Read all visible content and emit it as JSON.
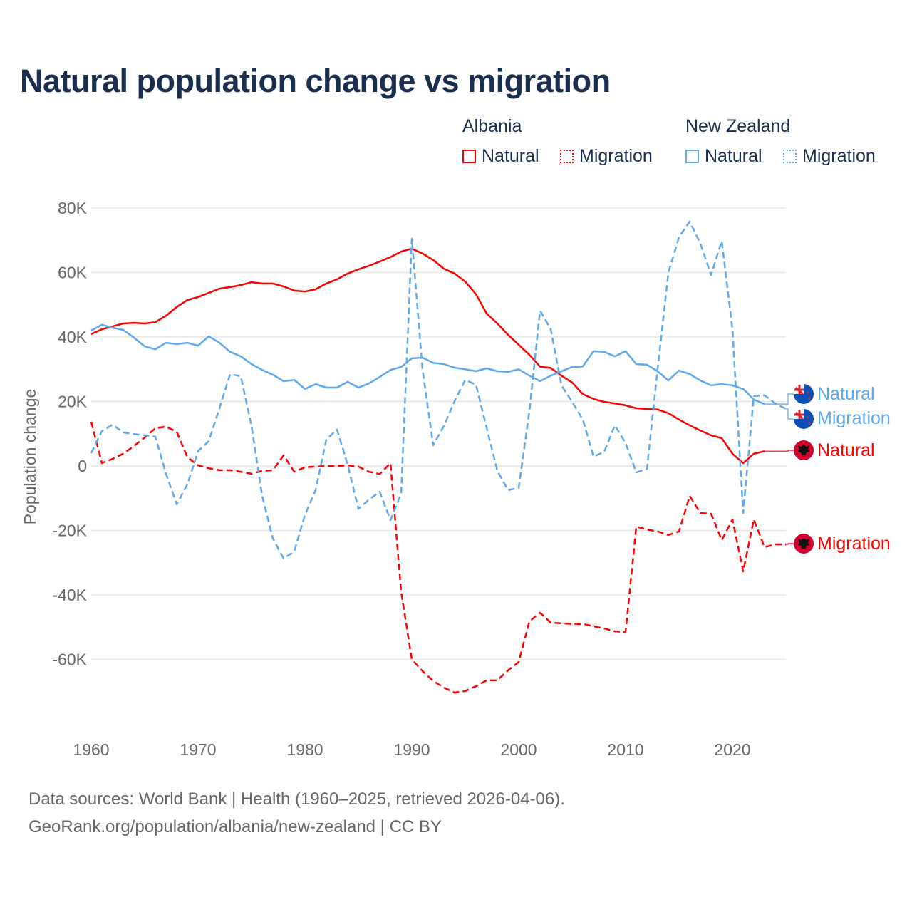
{
  "title": "Natural population change vs migration",
  "legend": {
    "groups": [
      {
        "name": "Albania",
        "items": [
          "Natural",
          "Migration"
        ]
      },
      {
        "name": "New Zealand",
        "items": [
          "Natural",
          "Migration"
        ]
      }
    ]
  },
  "colors": {
    "albania": "#ff0000",
    "new_zealand": "#5ea8ec",
    "title": "#1a2e4f",
    "axis_text": "#666666",
    "grid": "#e6e6e6"
  },
  "footer": {
    "line1": "Data sources: World Bank | Health (1960–2025, retrieved 2026-04-06).",
    "line2": "GeoRank.org/population/albania/new-zealand | CC BY"
  },
  "chart_data": {
    "type": "line",
    "title": "Natural population change vs migration",
    "xlabel": "",
    "ylabel": "Population change",
    "xlim": [
      1960,
      2025
    ],
    "ylim": [
      -80000,
      80000
    ],
    "x_ticks": [
      1960,
      1970,
      1980,
      1990,
      2000,
      2010,
      2020
    ],
    "x_tick_labels": [
      "1960",
      "1970",
      "1980",
      "1990",
      "2000",
      "2010",
      "2020"
    ],
    "y_ticks": [
      80000,
      60000,
      40000,
      20000,
      0,
      -20000,
      -40000,
      -60000
    ],
    "y_tick_labels": [
      "80K",
      "60K",
      "40K",
      "20K",
      "0",
      "-20K",
      "-40K",
      "-60K"
    ],
    "grid": true,
    "legend_position": "top-right",
    "series": [
      {
        "name": "Albania Natural",
        "country": "Albania",
        "kind": "Natural",
        "dash": "solid",
        "color": "#ff0000",
        "start_year": 1960,
        "values": [
          40900,
          42400,
          43300,
          44200,
          44400,
          44200,
          44600,
          46600,
          49300,
          51500,
          52400,
          53700,
          55000,
          55500,
          56100,
          57000,
          56600,
          56600,
          55700,
          54400,
          54100,
          54800,
          56600,
          57900,
          59700,
          61000,
          62100,
          63400,
          64800,
          66500,
          67400,
          65900,
          63900,
          61200,
          59700,
          57200,
          53300,
          47300,
          44200,
          40700,
          37600,
          34500,
          30800,
          30400,
          28000,
          25900,
          22300,
          20800,
          19900,
          19400,
          18800,
          17900,
          17700,
          17500,
          16400,
          14400,
          12600,
          11000,
          9500,
          8600,
          3800,
          900,
          3800,
          4600
        ]
      },
      {
        "name": "Albania Migration",
        "country": "Albania",
        "kind": "Migration",
        "dash": "dashed",
        "color": "#ff0000",
        "start_year": 1960,
        "values": [
          13700,
          900,
          2200,
          3800,
          6200,
          8800,
          11700,
          12200,
          10600,
          2700,
          200,
          -700,
          -1300,
          -1300,
          -1800,
          -2400,
          -1500,
          -1300,
          3300,
          -1800,
          -400,
          -200,
          0,
          0,
          200,
          -200,
          -1800,
          -2500,
          900,
          -39000,
          -60000,
          -63600,
          -66700,
          -68700,
          -70300,
          -69800,
          -68300,
          -66500,
          -66500,
          -63400,
          -60800,
          -48200,
          -45500,
          -48600,
          -48800,
          -49000,
          -49000,
          -49700,
          -50400,
          -51300,
          -51500,
          -18800,
          -19700,
          -20300,
          -21400,
          -20300,
          -9300,
          -14600,
          -14800,
          -23000,
          -16600,
          -32700,
          -16600,
          -25200,
          -24300,
          -24300
        ]
      },
      {
        "name": "New Zealand Natural",
        "country": "New Zealand",
        "kind": "Natural",
        "dash": "solid",
        "color": "#5ea8ec",
        "start_year": 1960,
        "values": [
          42000,
          43800,
          42900,
          42200,
          39800,
          37100,
          36200,
          38200,
          37800,
          38200,
          37300,
          40200,
          38200,
          35400,
          34000,
          31600,
          29800,
          28300,
          26300,
          26700,
          23900,
          25400,
          24300,
          24300,
          26100,
          24300,
          25600,
          27600,
          29800,
          30700,
          33400,
          33600,
          32000,
          31600,
          30500,
          30000,
          29400,
          30300,
          29400,
          29200,
          30000,
          28000,
          26300,
          28000,
          29400,
          30700,
          30900,
          35600,
          35400,
          34000,
          35600,
          31600,
          31400,
          29400,
          26500,
          29600,
          28500,
          26500,
          25000,
          25400,
          25000,
          23900,
          20600,
          19200
        ]
      },
      {
        "name": "New Zealand Migration",
        "country": "New Zealand",
        "kind": "Migration",
        "dash": "dashed",
        "color": "#5ea8ec",
        "start_year": 1960,
        "values": [
          4000,
          10800,
          12800,
          10400,
          9900,
          9500,
          9100,
          -2400,
          -11900,
          -5700,
          4600,
          7700,
          17900,
          28500,
          27800,
          12400,
          -9300,
          -22500,
          -28700,
          -26500,
          -15200,
          -7500,
          8200,
          11300,
          400,
          -13300,
          -10400,
          -8000,
          -16800,
          -8600,
          70500,
          30000,
          6400,
          12400,
          20100,
          26700,
          25200,
          11900,
          -1500,
          -7500,
          -6800,
          17000,
          48200,
          42400,
          25000,
          19900,
          14400,
          2900,
          4400,
          12600,
          7100,
          -2000,
          -900,
          30000,
          59900,
          71000,
          75800,
          69000,
          59200,
          69800,
          42400,
          -14600,
          21700,
          21900,
          19400,
          17700
        ]
      }
    ],
    "end_labels": [
      {
        "text": "Natural",
        "country": "New Zealand"
      },
      {
        "text": "Migration",
        "country": "New Zealand"
      },
      {
        "text": "Natural",
        "country": "Albania"
      },
      {
        "text": "Migration",
        "country": "Albania"
      }
    ]
  }
}
